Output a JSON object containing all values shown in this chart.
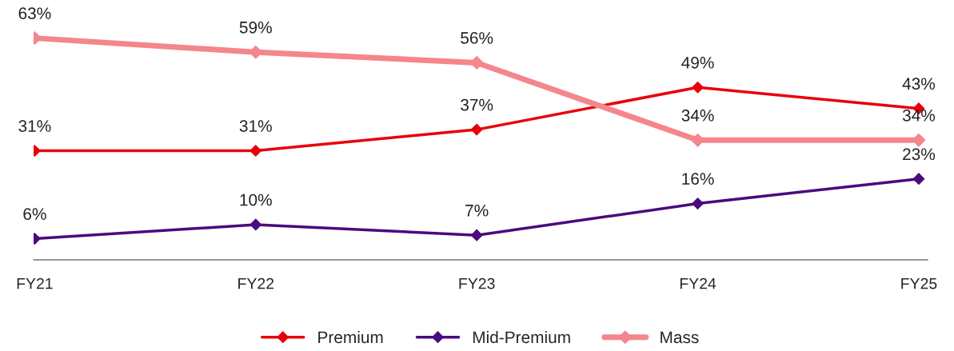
{
  "chart_data": {
    "type": "line",
    "categories": [
      "FY21",
      "FY22",
      "FY23",
      "FY24",
      "FY25"
    ],
    "series": [
      {
        "name": "Premium",
        "color": "#e8000b",
        "values": [
          31,
          31,
          37,
          49,
          43
        ],
        "value_labels": [
          "31%",
          "31%",
          "37%",
          "49%",
          "43%"
        ]
      },
      {
        "name": "Mid-Premium",
        "color": "#4b0a7d",
        "values": [
          6,
          10,
          7,
          16,
          23
        ],
        "value_labels": [
          "6%",
          "10%",
          "7%",
          "16%",
          "23%"
        ]
      },
      {
        "name": "Mass",
        "color": "#f4868c",
        "values": [
          63,
          59,
          56,
          34,
          34
        ],
        "value_labels": [
          "63%",
          "59%",
          "56%",
          "34%",
          "34%"
        ]
      }
    ],
    "marker": "diamond",
    "legend": "bottom",
    "grid": false
  }
}
